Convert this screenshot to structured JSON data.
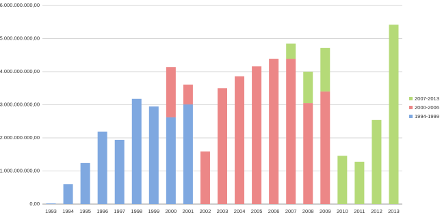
{
  "chart_data": {
    "type": "stacked-bar",
    "categories": [
      "1993",
      "1994",
      "1995",
      "1996",
      "1997",
      "1998",
      "1999",
      "2000",
      "2001",
      "2002",
      "2003",
      "2004",
      "2005",
      "2006",
      "2007",
      "2008",
      "2009",
      "2010",
      "2011",
      "2012",
      "2013"
    ],
    "series": [
      {
        "name": "1994-1999",
        "color": "#7fa8e0",
        "values": [
          20000000,
          600000000,
          1240000000,
          2190000000,
          1940000000,
          3180000000,
          2950000000,
          2620000000,
          3010000000,
          null,
          null,
          null,
          null,
          null,
          null,
          null,
          null,
          null,
          null,
          null,
          null
        ]
      },
      {
        "name": "2000-2006",
        "color": "#ec8787",
        "values": [
          null,
          null,
          null,
          null,
          null,
          null,
          null,
          1520000000,
          600000000,
          1590000000,
          3500000000,
          3860000000,
          4160000000,
          4390000000,
          4390000000,
          3050000000,
          3400000000,
          null,
          null,
          null,
          null
        ]
      },
      {
        "name": "2007-2013",
        "color": "#b5da78",
        "values": [
          null,
          null,
          null,
          null,
          null,
          null,
          null,
          null,
          null,
          null,
          null,
          null,
          null,
          null,
          460000000,
          950000000,
          1320000000,
          1460000000,
          1280000000,
          2540000000,
          5420000000
        ]
      }
    ],
    "ylim": [
      0,
      6000000000
    ],
    "yticks": [
      {
        "value": 0,
        "label": "0,00"
      },
      {
        "value": 1000000000,
        "label": "1.000.000.000,00"
      },
      {
        "value": 2000000000,
        "label": "2.000.000.000,00"
      },
      {
        "value": 3000000000,
        "label": "3.000.000.000,00"
      },
      {
        "value": 4000000000,
        "label": "4.000.000.000,00"
      },
      {
        "value": 5000000000,
        "label": "5.000.000.000,00"
      },
      {
        "value": 6000000000,
        "label": "6.000.000.000,00"
      }
    ],
    "grid": true,
    "legend": "right"
  }
}
